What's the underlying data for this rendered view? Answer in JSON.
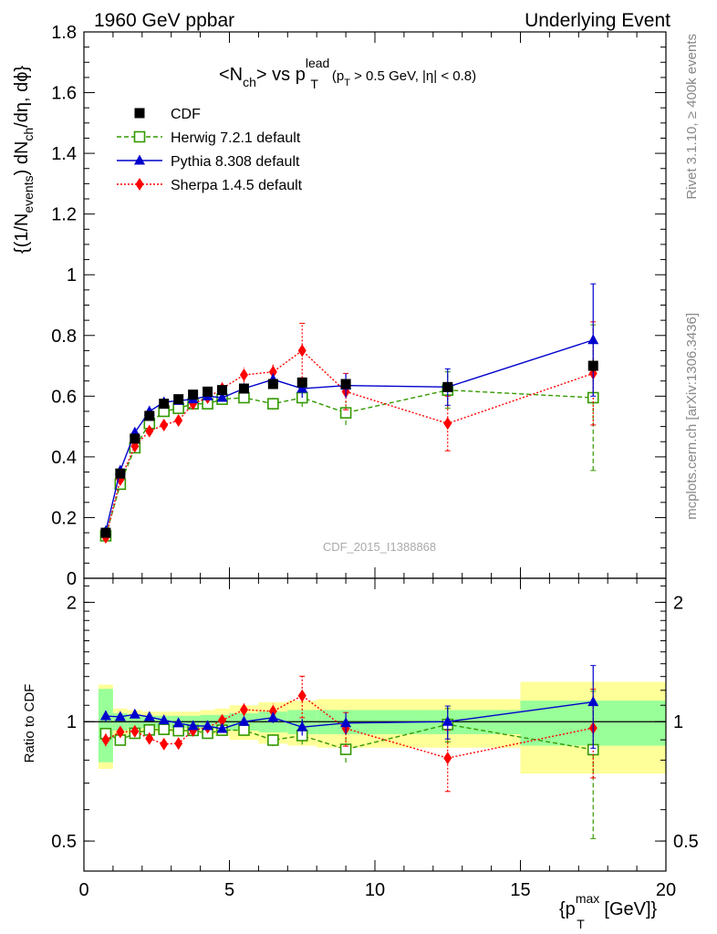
{
  "header": {
    "left": "1960 GeV ppbar",
    "right": "Underlying Event"
  },
  "side": {
    "rivet": "Rivet 3.1.10, ≥ 400k events",
    "mcplots": "mcplots.cern.ch [arXiv:1306.3436]"
  },
  "watermark": "CDF_2015_I1388868",
  "chart_data": {
    "type": "line",
    "title": "<Nch> vs pT lead (pT > 0.5 GeV, |η| < 0.8)",
    "title_parts": {
      "pre": "<N",
      "sub1": "ch",
      "mid": "> vs p",
      "sup": "lead",
      "sub2": "T",
      "post_open": "(p",
      "post_sub": "T",
      "post_rest": " > 0.5 GeV, |η| < 0.8)"
    },
    "xlabel": "{p_T^max [GeV]}",
    "xlabel_parts": {
      "open": "{p",
      "sup": "max",
      "sub": "T",
      "rest": " [GeV]}"
    },
    "ylabel": "{(1/N_events) dN_ch/dη, dϕ}",
    "ylabel_parts": {
      "a": "{(1/N",
      "b": "events",
      "c": ") dN",
      "d": "ch",
      "e": "/dη, dϕ}"
    },
    "ratio_ylabel": "Ratio to CDF",
    "xlim": [
      0,
      20
    ],
    "ylim": [
      0,
      1.8
    ],
    "ratio_ylim": [
      0.42,
      2.3
    ],
    "ratio_log": true,
    "x_ticks": [
      0,
      5,
      10,
      15,
      20
    ],
    "x_tick_labels": [
      "0",
      "5",
      "10",
      "15",
      "20"
    ],
    "y_ticks": [
      0,
      0.2,
      0.4,
      0.6,
      0.8,
      1,
      1.2,
      1.4,
      1.6,
      1.8
    ],
    "y_tick_labels": [
      "0",
      "0.2",
      "0.4",
      "0.6",
      "0.8",
      "1",
      "1.2",
      "1.4",
      "1.6",
      "1.8"
    ],
    "ratio_ticks": [
      0.5,
      1,
      2
    ],
    "ratio_tick_labels": [
      "0.5",
      "1",
      "2"
    ],
    "legend_position": "top-left",
    "x": [
      0.75,
      1.25,
      1.75,
      2.25,
      2.75,
      3.25,
      3.75,
      4.25,
      4.75,
      5.5,
      6.5,
      7.5,
      9.0,
      12.5,
      17.5
    ],
    "bins": [
      [
        0.5,
        1.0
      ],
      [
        1.0,
        1.5
      ],
      [
        1.5,
        2.0
      ],
      [
        2.0,
        2.5
      ],
      [
        2.5,
        3.0
      ],
      [
        3.0,
        3.5
      ],
      [
        3.5,
        4.0
      ],
      [
        4.0,
        4.5
      ],
      [
        4.5,
        5.0
      ],
      [
        5.0,
        6.0
      ],
      [
        6.0,
        7.0
      ],
      [
        7.0,
        8.0
      ],
      [
        8.0,
        10.0
      ],
      [
        10.0,
        15.0
      ],
      [
        15.0,
        20.0
      ]
    ],
    "band_inner": [
      0.21,
      0.05,
      0.04,
      0.035,
      0.035,
      0.035,
      0.035,
      0.04,
      0.04,
      0.05,
      0.06,
      0.07,
      0.07,
      0.07,
      0.13
    ],
    "band_outer": [
      0.24,
      0.08,
      0.07,
      0.06,
      0.06,
      0.06,
      0.06,
      0.07,
      0.08,
      0.1,
      0.12,
      0.13,
      0.14,
      0.14,
      0.26
    ],
    "series": [
      {
        "name": "CDF",
        "color": "#000000",
        "marker": "square-filled",
        "line": "none",
        "values": [
          0.15,
          0.345,
          0.46,
          0.535,
          0.575,
          0.59,
          0.605,
          0.615,
          0.62,
          0.625,
          0.64,
          0.645,
          0.64,
          0.63,
          0.7
        ],
        "errors": [
          0.01,
          0.01,
          0.01,
          0.01,
          0.01,
          0.01,
          0.01,
          0.01,
          0.01,
          0.01,
          0.01,
          0.01,
          0.01,
          0.01,
          0.02
        ]
      },
      {
        "name": "Herwig 7.2.1 default",
        "color": "#339900",
        "marker": "square-open",
        "line": "dashed",
        "values": [
          0.14,
          0.31,
          0.43,
          0.51,
          0.55,
          0.56,
          0.575,
          0.575,
          0.59,
          0.595,
          0.575,
          0.595,
          0.545,
          0.62,
          0.595
        ],
        "errors": [
          0.005,
          0.008,
          0.01,
          0.01,
          0.01,
          0.01,
          0.01,
          0.01,
          0.012,
          0.015,
          0.02,
          0.03,
          0.04,
          0.06,
          0.24
        ]
      },
      {
        "name": "Pythia 8.308 default",
        "color": "#0000cc",
        "marker": "triangle",
        "line": "solid",
        "values": [
          0.155,
          0.355,
          0.48,
          0.55,
          0.58,
          0.585,
          0.59,
          0.6,
          0.595,
          0.625,
          0.655,
          0.625,
          0.635,
          0.63,
          0.785
        ],
        "errors": [
          0.005,
          0.008,
          0.01,
          0.01,
          0.01,
          0.01,
          0.01,
          0.01,
          0.012,
          0.015,
          0.02,
          0.03,
          0.04,
          0.06,
          0.185
        ]
      },
      {
        "name": "Sherpa 1.4.5 default",
        "color": "#ff0000",
        "marker": "diamond",
        "line": "dotted",
        "values": [
          0.135,
          0.325,
          0.435,
          0.485,
          0.505,
          0.52,
          0.575,
          0.595,
          0.625,
          0.67,
          0.68,
          0.75,
          0.615,
          0.51,
          0.675
        ],
        "errors": [
          0.005,
          0.008,
          0.01,
          0.01,
          0.01,
          0.01,
          0.015,
          0.015,
          0.02,
          0.025,
          0.03,
          0.09,
          0.06,
          0.09,
          0.17
        ]
      }
    ]
  }
}
